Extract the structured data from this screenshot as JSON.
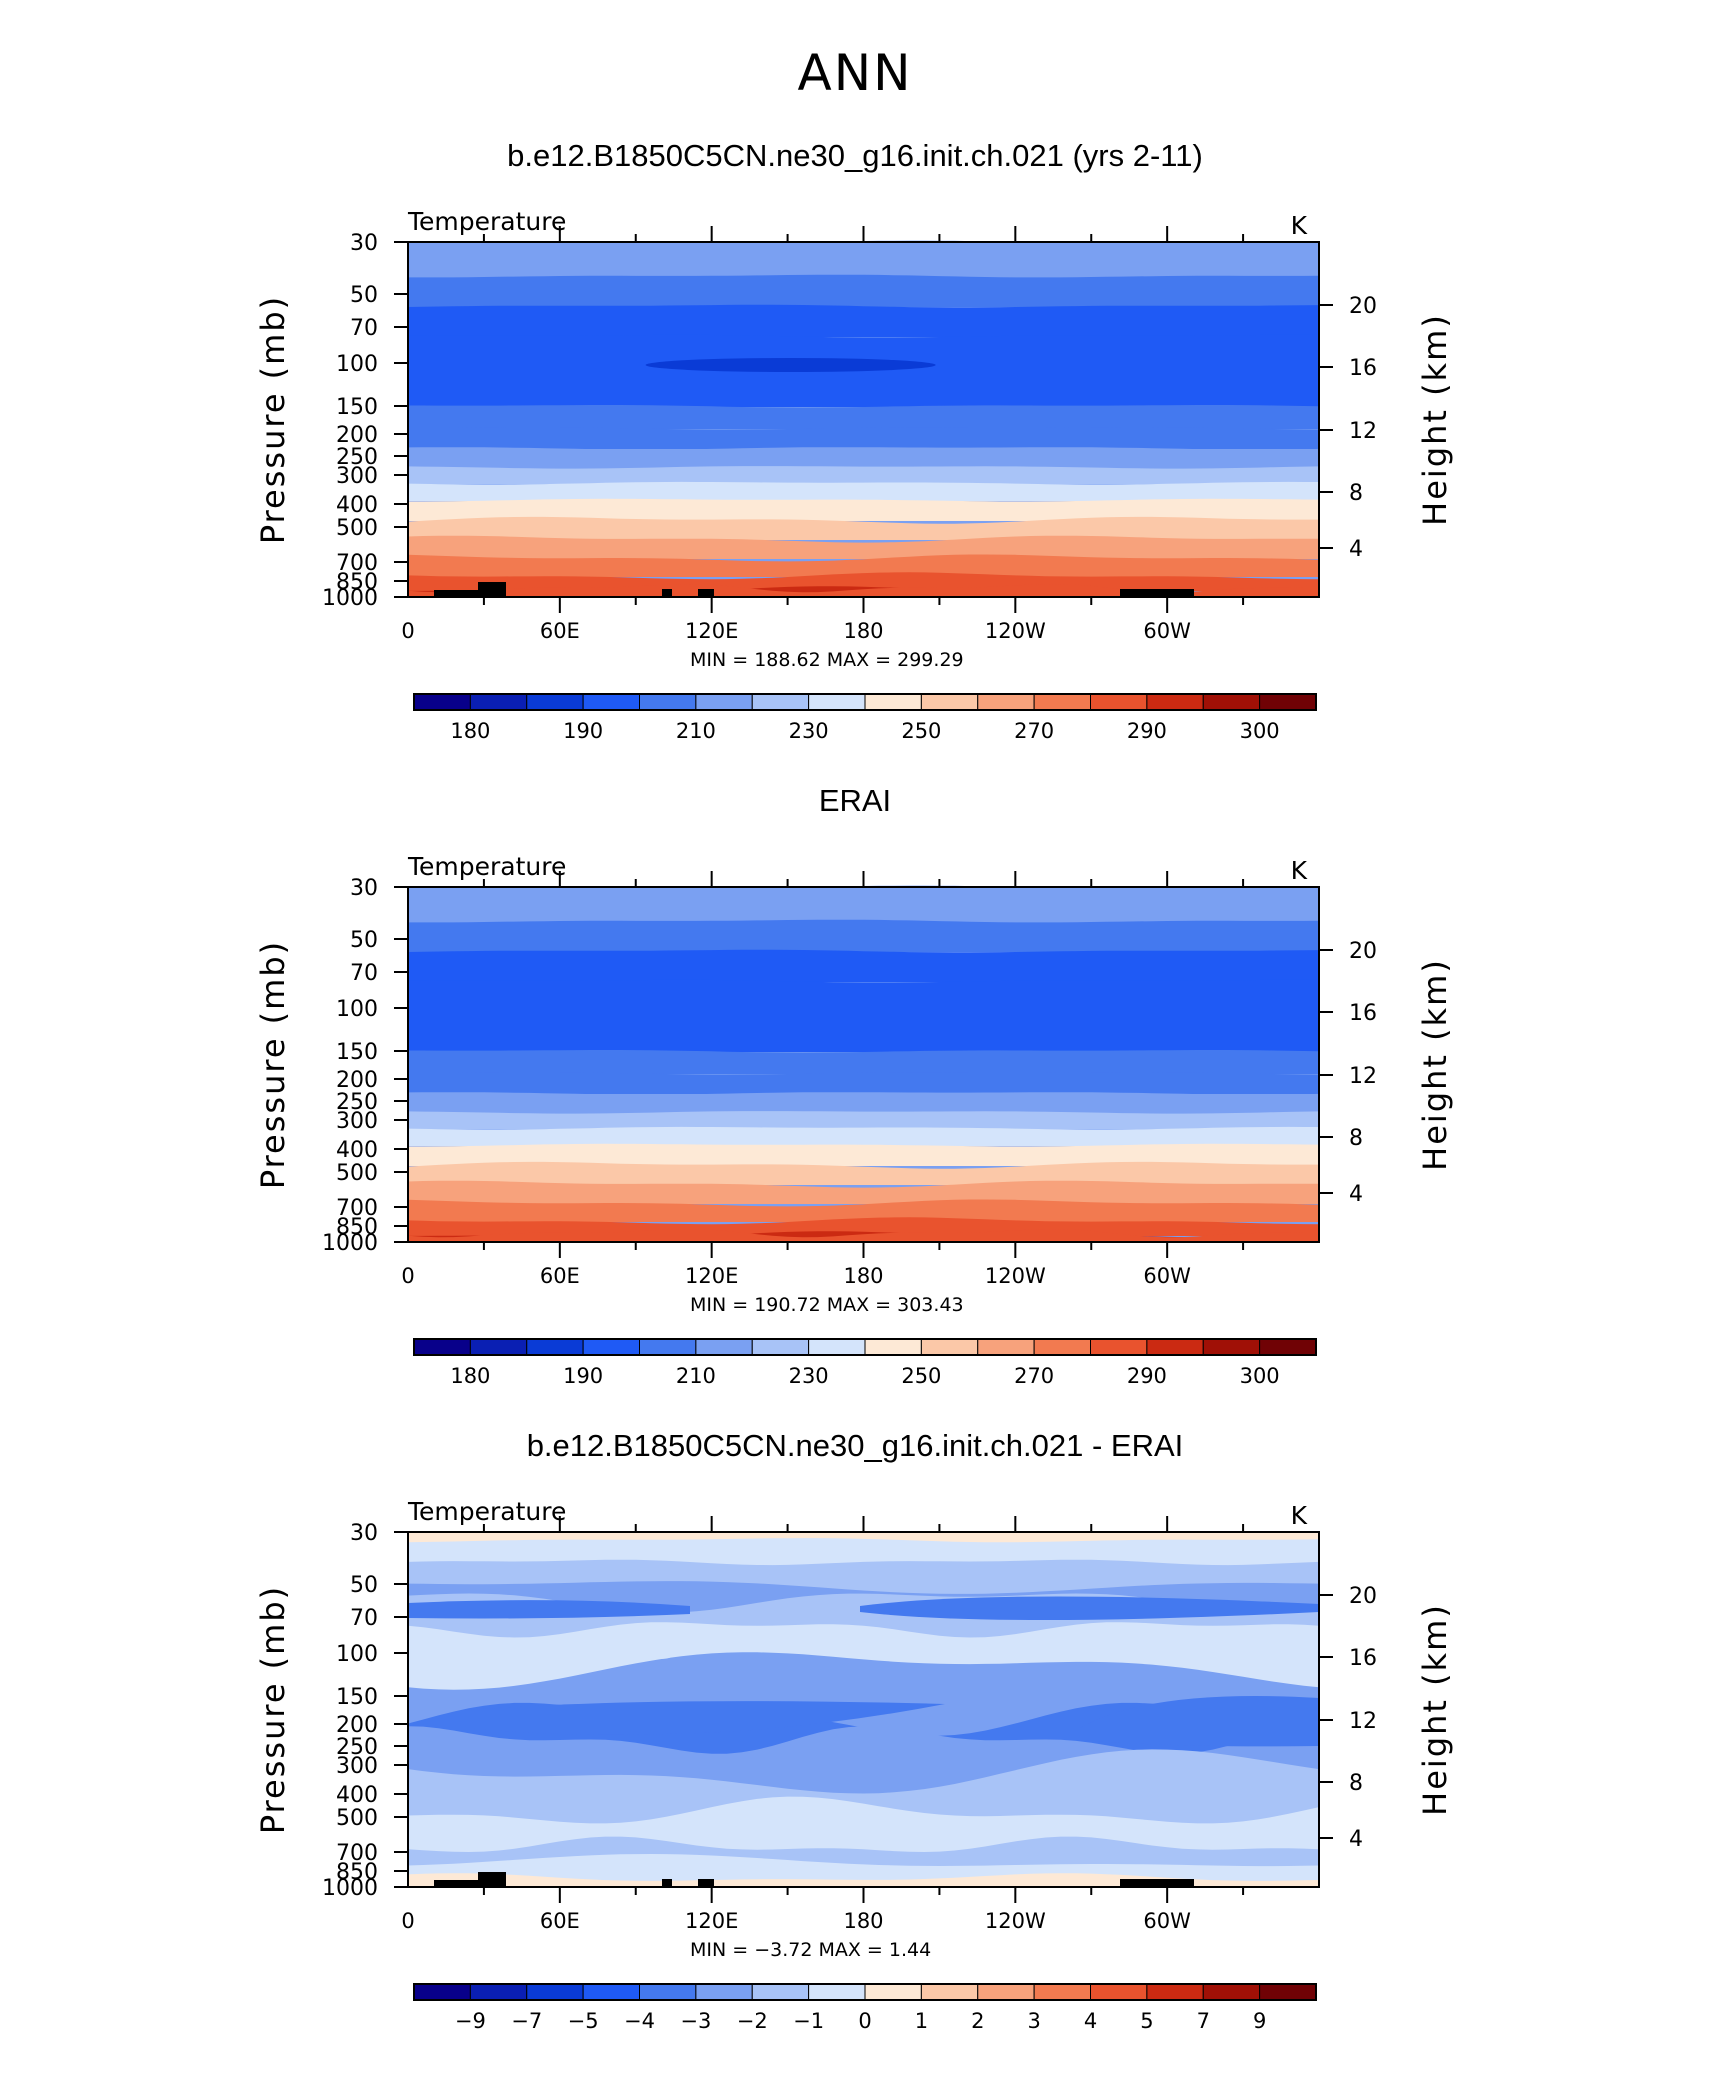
{
  "figure_title": "ANN",
  "colors": {
    "temp_palette": [
      "#08008a",
      "#0a1fb3",
      "#0a3bd6",
      "#1f5af5",
      "#4479ef",
      "#7aa0f2",
      "#a8c3f7",
      "#d4e4fb",
      "#fde9d6",
      "#fbc8a8",
      "#f7a27c",
      "#f27a50",
      "#e9532e",
      "#cb2a12",
      "#a01006",
      "#700205"
    ],
    "diff_palette": [
      "#08008a",
      "#0a1fb3",
      "#0a3bd6",
      "#1f5af5",
      "#4479ef",
      "#7aa0f2",
      "#a8c3f7",
      "#d4e4fb",
      "#fde9d6",
      "#fbc8a8",
      "#f7a27c",
      "#f27a50",
      "#e9532e",
      "#cb2a12",
      "#a01006",
      "#700205"
    ]
  },
  "chart_data": [
    {
      "type": "heatmap",
      "title": "b.e12.B1850C5CN.ne30_g16.init.ch.021 (yrs 2-11)",
      "variable": "Temperature",
      "units": "K",
      "ylabel": "Pressure  (mb)",
      "ylabel_right": "Height  (km)",
      "x_ticks": [
        "0",
        "60E",
        "120E",
        "180",
        "120W",
        "60W"
      ],
      "y_ticks": [
        "30",
        "50",
        "70",
        "100",
        "150",
        "200",
        "250",
        "300",
        "400",
        "500",
        "700",
        "850",
        "1000"
      ],
      "height_ticks": [
        "20",
        "16",
        "12",
        "8",
        "4"
      ],
      "stats": {
        "min_label": "MIN",
        "min": "188.62",
        "max_label": "MAX",
        "max": "299.29"
      },
      "colorbar_labels": [
        "180",
        "",
        "190",
        "",
        "210",
        "",
        "230",
        "",
        "250",
        "",
        "270",
        "",
        "290",
        "",
        "300"
      ],
      "level_colors": [
        5,
        4,
        3,
        3,
        4,
        4,
        5,
        6,
        7,
        8,
        9,
        10,
        11,
        12,
        13
      ],
      "cold_core": true,
      "topography": true
    },
    {
      "type": "heatmap",
      "title": "ERAI",
      "variable": "Temperature",
      "units": "K",
      "ylabel": "Pressure  (mb)",
      "ylabel_right": "Height  (km)",
      "x_ticks": [
        "0",
        "60E",
        "120E",
        "180",
        "120W",
        "60W"
      ],
      "y_ticks": [
        "30",
        "50",
        "70",
        "100",
        "150",
        "200",
        "250",
        "300",
        "400",
        "500",
        "700",
        "850",
        "1000"
      ],
      "height_ticks": [
        "20",
        "16",
        "12",
        "8",
        "4"
      ],
      "stats": {
        "min_label": "MIN",
        "min": "190.72",
        "max_label": "MAX",
        "max": "303.43"
      },
      "colorbar_labels": [
        "180",
        "",
        "190",
        "",
        "210",
        "",
        "230",
        "",
        "250",
        "",
        "270",
        "",
        "290",
        "",
        "300"
      ],
      "level_colors": [
        5,
        4,
        3,
        3,
        4,
        4,
        5,
        6,
        7,
        8,
        9,
        10,
        11,
        12,
        13
      ],
      "cold_core": false,
      "topography": false
    },
    {
      "type": "heatmap",
      "title": "b.e12.B1850C5CN.ne30_g16.init.ch.021 - ERAI",
      "variable": "Temperature",
      "units": "K",
      "ylabel": "Pressure  (mb)",
      "ylabel_right": "Height  (km)",
      "x_ticks": [
        "0",
        "60E",
        "120E",
        "180",
        "120W",
        "60W"
      ],
      "y_ticks": [
        "30",
        "50",
        "70",
        "100",
        "150",
        "200",
        "250",
        "300",
        "400",
        "500",
        "700",
        "850",
        "1000"
      ],
      "height_ticks": [
        "20",
        "16",
        "12",
        "8",
        "4"
      ],
      "stats": {
        "min_label": "MIN",
        "min": "−3.72",
        "max_label": "MAX",
        "max": "1.44"
      },
      "colorbar_labels": [
        "−9",
        "−7",
        "−5",
        "−4",
        "−3",
        "−2",
        "−1",
        "0",
        "1",
        "2",
        "3",
        "4",
        "5",
        "7",
        "9"
      ],
      "diff": true,
      "topography": true
    }
  ]
}
